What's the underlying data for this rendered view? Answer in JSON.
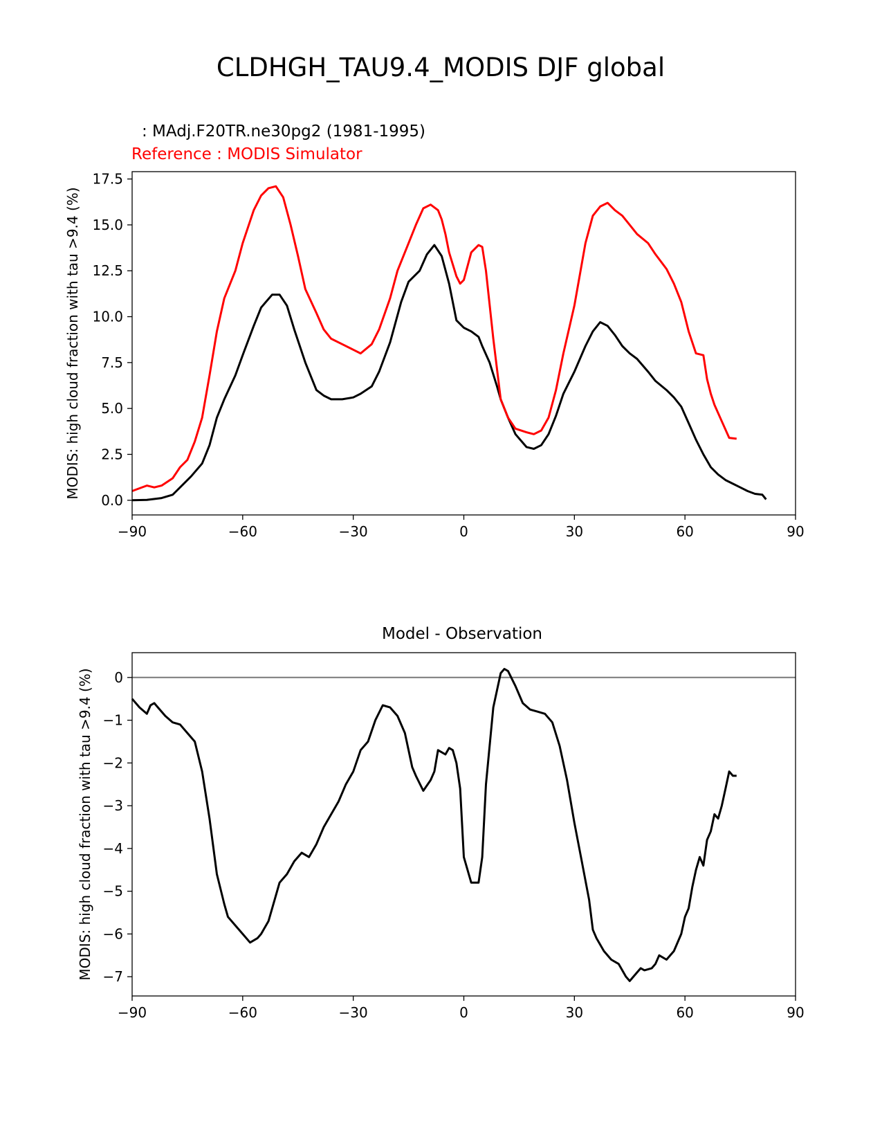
{
  "figure": {
    "suptitle": "CLDHGH_TAU9.4_MODIS DJF global",
    "colors": {
      "test": "#000000",
      "reference": "#ff0000",
      "zero_line": "#808080"
    }
  },
  "chart_data": [
    {
      "type": "line",
      "title": "",
      "annotations": {
        "test": ": MAdj.F20TR.ne30pg2 (1981-1995)",
        "reference": "Reference : MODIS Simulator"
      },
      "xlabel": "",
      "ylabel": "MODIS: high cloud fraction with tau >9.4 (%)",
      "xlim": [
        -90,
        90
      ],
      "ylim": [
        -0.8,
        17.9
      ],
      "xticks": [
        -90,
        -60,
        -30,
        0,
        30,
        60,
        90
      ],
      "xtick_labels": [
        "−90",
        "−60",
        "−30",
        "0",
        "30",
        "60",
        "90"
      ],
      "yticks": [
        0,
        2.5,
        5,
        7.5,
        10,
        12.5,
        15,
        17.5
      ],
      "ytick_labels": [
        "0.0",
        "2.5",
        "5.0",
        "7.5",
        "10.0",
        "12.5",
        "15.0",
        "17.5"
      ],
      "grid": false,
      "series": [
        {
          "key": "test",
          "color": "#000000",
          "x": [
            -90,
            -86,
            -82,
            -79,
            -77,
            -74,
            -71,
            -69,
            -67,
            -65,
            -62,
            -60,
            -57,
            -55,
            -52,
            -50,
            -48,
            -46,
            -43,
            -40,
            -38,
            -36,
            -33,
            -30,
            -28,
            -25,
            -23,
            -20,
            -17,
            -15,
            -12,
            -10,
            -8,
            -6,
            -4,
            -2,
            0,
            2,
            4,
            5,
            7,
            9,
            10,
            12,
            14,
            17,
            19,
            21,
            23,
            25,
            27,
            30,
            33,
            35,
            37,
            39,
            41,
            43,
            45,
            47,
            50,
            52,
            55,
            57,
            59,
            61,
            63,
            65,
            67,
            69,
            71,
            73,
            75,
            77,
            79,
            81,
            82
          ],
          "y": [
            0.0,
            0.02,
            0.12,
            0.3,
            0.7,
            1.3,
            2.0,
            3.0,
            4.5,
            5.5,
            6.8,
            7.9,
            9.5,
            10.5,
            11.2,
            11.2,
            10.6,
            9.3,
            7.5,
            6.0,
            5.7,
            5.5,
            5.5,
            5.6,
            5.8,
            6.2,
            7.0,
            8.6,
            10.8,
            11.9,
            12.5,
            13.4,
            13.9,
            13.3,
            11.8,
            9.8,
            9.4,
            9.2,
            8.9,
            8.4,
            7.5,
            6.2,
            5.5,
            4.5,
            3.6,
            2.9,
            2.8,
            3.0,
            3.6,
            4.6,
            5.8,
            7.0,
            8.4,
            9.2,
            9.7,
            9.5,
            9.0,
            8.4,
            8.0,
            7.7,
            7.0,
            6.5,
            6.0,
            5.6,
            5.1,
            4.2,
            3.3,
            2.5,
            1.8,
            1.4,
            1.1,
            0.9,
            0.7,
            0.5,
            0.35,
            0.3,
            0.05
          ]
        },
        {
          "key": "reference",
          "color": "#ff0000",
          "x": [
            -90,
            -88,
            -86,
            -84,
            -82,
            -79,
            -77,
            -75,
            -73,
            -71,
            -69,
            -67,
            -65,
            -62,
            -60,
            -57,
            -55,
            -53,
            -51,
            -49,
            -47,
            -45,
            -43,
            -40,
            -38,
            -36,
            -33,
            -30,
            -28,
            -25,
            -23,
            -20,
            -18,
            -15,
            -13,
            -11,
            -9,
            -7,
            -6,
            -5,
            -4,
            -2,
            -1,
            0,
            2,
            4,
            5,
            6,
            8,
            10,
            12,
            14,
            17,
            19,
            21,
            23,
            25,
            27,
            30,
            33,
            35,
            37,
            39,
            41,
            43,
            45,
            47,
            50,
            52,
            55,
            57,
            59,
            61,
            63,
            65,
            66,
            67,
            68,
            70,
            72,
            74
          ],
          "y": [
            0.5,
            0.65,
            0.8,
            0.7,
            0.8,
            1.2,
            1.8,
            2.2,
            3.2,
            4.5,
            6.8,
            9.2,
            11.0,
            12.5,
            14.0,
            15.8,
            16.6,
            17.0,
            17.1,
            16.5,
            15.0,
            13.3,
            11.5,
            10.2,
            9.3,
            8.8,
            8.5,
            8.2,
            8.0,
            8.5,
            9.3,
            11.0,
            12.5,
            14.0,
            15.0,
            15.9,
            16.1,
            15.8,
            15.3,
            14.5,
            13.5,
            12.2,
            11.8,
            12.0,
            13.5,
            13.9,
            13.8,
            12.5,
            8.8,
            5.5,
            4.5,
            3.9,
            3.7,
            3.6,
            3.8,
            4.5,
            6.0,
            8.0,
            10.6,
            14.0,
            15.5,
            16.0,
            16.2,
            15.8,
            15.5,
            15.0,
            14.5,
            14.0,
            13.4,
            12.6,
            11.8,
            10.8,
            9.2,
            8.0,
            7.9,
            6.6,
            5.8,
            5.2,
            4.3,
            3.4,
            3.35
          ]
        }
      ]
    },
    {
      "type": "line",
      "title": "Model - Observation",
      "xlabel": "",
      "ylabel": "MODIS: high cloud fraction with tau >9.4 (%)",
      "xlim": [
        -90,
        90
      ],
      "ylim": [
        -7.45,
        0.58
      ],
      "xticks": [
        -90,
        -60,
        -30,
        0,
        30,
        60,
        90
      ],
      "xtick_labels": [
        "−90",
        "−60",
        "−30",
        "0",
        "30",
        "60",
        "90"
      ],
      "yticks": [
        0,
        -1,
        -2,
        -3,
        -4,
        -5,
        -6,
        -7
      ],
      "ytick_labels": [
        "0",
        "−1",
        "−2",
        "−3",
        "−4",
        "−5",
        "−6",
        "−7"
      ],
      "grid": false,
      "zero_line": {
        "y": 0,
        "color": "#808080"
      },
      "series": [
        {
          "key": "difference",
          "color": "#000000",
          "x": [
            -90,
            -88,
            -86,
            -85,
            -84,
            -83,
            -81,
            -79,
            -77,
            -75,
            -73,
            -71,
            -69,
            -67,
            -65,
            -64,
            -62,
            -60,
            -58,
            -56,
            -55,
            -53,
            -51,
            -50,
            -48,
            -46,
            -44,
            -42,
            -40,
            -38,
            -36,
            -34,
            -32,
            -30,
            -28,
            -26,
            -24,
            -22,
            -20,
            -18,
            -16,
            -14,
            -13,
            -11,
            -9,
            -8,
            -7,
            -5,
            -4,
            -3,
            -2,
            -1,
            0,
            2,
            4,
            5,
            6,
            8,
            10,
            11,
            12,
            14,
            16,
            18,
            20,
            22,
            24,
            26,
            28,
            30,
            32,
            34,
            35,
            36,
            38,
            40,
            42,
            44,
            45,
            47,
            48,
            49,
            51,
            52,
            53,
            55,
            57,
            59,
            60,
            61,
            62,
            63,
            64,
            65,
            66,
            67,
            68,
            69,
            70,
            71,
            72,
            73,
            74
          ],
          "y": [
            -0.5,
            -0.7,
            -0.85,
            -0.65,
            -0.6,
            -0.7,
            -0.9,
            -1.05,
            -1.1,
            -1.3,
            -1.5,
            -2.2,
            -3.3,
            -4.6,
            -5.3,
            -5.6,
            -5.8,
            -6.0,
            -6.2,
            -6.1,
            -6.0,
            -5.7,
            -5.1,
            -4.8,
            -4.6,
            -4.3,
            -4.1,
            -4.2,
            -3.9,
            -3.5,
            -3.2,
            -2.9,
            -2.5,
            -2.2,
            -1.7,
            -1.5,
            -1.0,
            -0.65,
            -0.7,
            -0.9,
            -1.3,
            -2.1,
            -2.3,
            -2.65,
            -2.4,
            -2.2,
            -1.7,
            -1.8,
            -1.65,
            -1.7,
            -2.0,
            -2.6,
            -4.2,
            -4.8,
            -4.8,
            -4.2,
            -2.5,
            -0.7,
            0.1,
            0.2,
            0.15,
            -0.2,
            -0.6,
            -0.75,
            -0.8,
            -0.85,
            -1.05,
            -1.6,
            -2.4,
            -3.4,
            -4.3,
            -5.2,
            -5.9,
            -6.1,
            -6.4,
            -6.6,
            -6.7,
            -7.0,
            -7.1,
            -6.9,
            -6.8,
            -6.85,
            -6.8,
            -6.7,
            -6.5,
            -6.6,
            -6.4,
            -6.0,
            -5.6,
            -5.4,
            -4.9,
            -4.5,
            -4.2,
            -4.4,
            -3.8,
            -3.6,
            -3.2,
            -3.3,
            -3.0,
            -2.6,
            -2.2,
            -2.3,
            -2.3
          ]
        }
      ]
    }
  ]
}
